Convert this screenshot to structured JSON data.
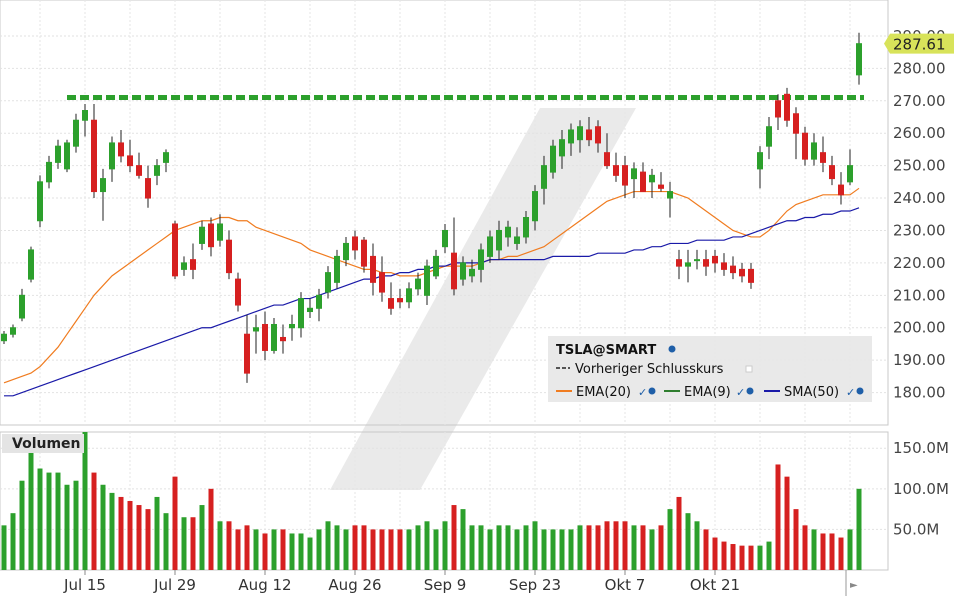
{
  "chart_data": {
    "type": "candlestick",
    "symbol": "TSLA@SMART",
    "last_price_label": "287.61",
    "price_axis": {
      "ticks": [
        "180.00",
        "190.00",
        "200.00",
        "210.00",
        "220.00",
        "230.00",
        "240.00",
        "250.00",
        "260.00",
        "270.00",
        "280.00",
        "290.00"
      ],
      "range": [
        170,
        298
      ]
    },
    "volume_axis": {
      "title": "Volumen",
      "ticks": [
        "50.0M",
        "100.0M",
        "150.0M"
      ],
      "range": [
        0,
        170
      ]
    },
    "x_ticks": [
      "Jul 15",
      "Jul 29",
      "Aug 12",
      "Aug 26",
      "Sep 9",
      "Sep 23",
      "Okt 7",
      "Okt 21"
    ],
    "x_tick_bars": [
      9,
      19,
      29,
      39,
      49,
      59,
      69,
      79
    ],
    "previous_close": 271.0,
    "legend": {
      "title": "TSLA@SMART",
      "items": [
        {
          "label": "Vorheriger Schlusskurs",
          "color": "#555555",
          "style": "dashed"
        },
        {
          "label": "EMA(20)",
          "color": "#f07c20"
        },
        {
          "label": "EMA(9)",
          "color": "#2e7d2e"
        },
        {
          "label": "SMA(50)",
          "color": "#1a1aa8"
        }
      ]
    },
    "colors": {
      "up": "#2ca02c",
      "down": "#d62020",
      "prev_close": "#2ca02c",
      "last_price_bg": "#d8e35a"
    },
    "ohlc": [
      [
        196,
        199,
        195,
        198
      ],
      [
        198,
        201,
        197,
        200
      ],
      [
        203,
        212,
        202,
        210
      ],
      [
        215,
        225,
        214,
        224
      ],
      [
        233,
        247,
        231,
        245
      ],
      [
        245,
        253,
        243,
        251
      ],
      [
        251,
        258,
        249,
        256
      ],
      [
        249,
        258,
        248,
        257
      ],
      [
        256,
        266,
        254,
        264
      ],
      [
        264,
        269,
        259,
        267
      ],
      [
        264,
        269,
        240,
        242
      ],
      [
        242,
        249,
        233,
        246
      ],
      [
        249,
        259,
        245,
        257
      ],
      [
        257,
        261,
        251,
        253
      ],
      [
        253,
        258,
        248,
        250
      ],
      [
        250,
        254,
        246,
        247
      ],
      [
        246,
        250,
        237,
        240
      ],
      [
        247,
        252,
        244,
        250
      ],
      [
        251,
        255,
        248,
        254
      ],
      [
        232,
        233,
        215,
        216
      ],
      [
        218,
        222,
        216,
        220
      ],
      [
        221,
        226,
        215,
        218
      ],
      [
        226,
        233,
        224,
        231
      ],
      [
        232,
        234,
        222,
        225
      ],
      [
        227,
        235,
        225,
        232
      ],
      [
        227,
        230,
        215,
        217
      ],
      [
        215,
        217,
        205,
        207
      ],
      [
        198,
        204,
        183,
        186
      ],
      [
        199,
        204,
        192,
        200
      ],
      [
        201,
        205,
        190,
        193
      ],
      [
        193,
        203,
        192,
        201
      ],
      [
        197,
        201,
        192,
        196
      ],
      [
        200,
        204,
        196,
        201
      ],
      [
        200,
        211,
        197,
        209
      ],
      [
        205,
        209,
        203,
        206
      ],
      [
        206,
        212,
        202,
        210
      ],
      [
        211,
        219,
        209,
        217
      ],
      [
        214,
        224,
        212,
        222
      ],
      [
        221,
        228,
        219,
        226
      ],
      [
        228,
        230,
        221,
        224
      ],
      [
        227,
        228,
        217,
        219
      ],
      [
        222,
        226,
        210,
        214
      ],
      [
        217,
        222,
        208,
        211
      ],
      [
        209,
        214,
        204,
        206
      ],
      [
        209,
        212,
        206,
        208
      ],
      [
        208,
        214,
        206,
        212
      ],
      [
        212,
        217,
        210,
        215
      ],
      [
        210,
        221,
        207,
        219
      ],
      [
        216,
        224,
        215,
        222
      ],
      [
        225,
        232,
        223,
        230
      ],
      [
        223,
        234,
        210,
        212
      ],
      [
        215,
        222,
        213,
        220
      ],
      [
        216,
        221,
        214,
        218
      ],
      [
        218,
        226,
        214,
        224
      ],
      [
        222,
        230,
        220,
        228
      ],
      [
        224,
        233,
        221,
        230
      ],
      [
        228,
        233,
        225,
        231
      ],
      [
        226,
        231,
        224,
        228
      ],
      [
        228,
        236,
        226,
        234
      ],
      [
        233,
        244,
        230,
        242
      ],
      [
        243,
        253,
        238,
        250
      ],
      [
        248,
        258,
        246,
        256
      ],
      [
        253,
        261,
        249,
        258
      ],
      [
        257,
        263,
        253,
        261
      ],
      [
        258,
        264,
        254,
        262
      ],
      [
        261,
        265,
        256,
        258
      ],
      [
        262,
        264,
        254,
        257
      ],
      [
        254,
        260,
        249,
        250
      ],
      [
        250,
        254,
        245,
        247
      ],
      [
        250,
        253,
        240,
        244
      ],
      [
        246,
        251,
        240,
        249
      ],
      [
        248,
        251,
        242,
        242
      ],
      [
        245,
        249,
        240,
        247
      ],
      [
        244,
        248,
        242,
        243
      ],
      [
        240,
        245,
        234,
        242
      ],
      [
        221,
        224,
        215,
        219
      ],
      [
        219,
        224,
        214,
        220
      ],
      [
        221,
        224,
        218,
        221
      ],
      [
        221,
        224,
        216,
        219
      ],
      [
        222,
        224,
        217,
        220
      ],
      [
        220,
        223,
        216,
        218
      ],
      [
        219,
        222,
        215,
        217
      ],
      [
        218,
        220,
        214,
        216
      ],
      [
        218,
        220,
        212,
        214
      ],
      [
        249,
        256,
        243,
        254
      ],
      [
        256,
        265,
        252,
        262
      ],
      [
        270,
        272,
        261,
        265
      ],
      [
        272,
        274,
        262,
        264
      ],
      [
        266,
        268,
        252,
        260
      ],
      [
        260,
        262,
        250,
        252
      ],
      [
        252,
        260,
        250,
        257
      ],
      [
        254,
        259,
        248,
        251
      ],
      [
        250,
        253,
        244,
        246
      ],
      [
        244,
        248,
        238,
        241
      ],
      [
        245,
        255,
        244,
        250
      ],
      [
        278,
        291,
        275,
        287.61
      ]
    ],
    "ema20": [
      183,
      184,
      185,
      186,
      188,
      191,
      194,
      198,
      202,
      206,
      210,
      213,
      216,
      218,
      220,
      222,
      224,
      226,
      228,
      230,
      231,
      232,
      233,
      233,
      234,
      234,
      233,
      233,
      231,
      230,
      229,
      228,
      227,
      226,
      224,
      223,
      222,
      221,
      220,
      219,
      218,
      218,
      217,
      217,
      216,
      216,
      216,
      217,
      218,
      219,
      219,
      219,
      219,
      220,
      221,
      221,
      222,
      222,
      223,
      224,
      225,
      227,
      229,
      231,
      233,
      235,
      237,
      239,
      240,
      241,
      242,
      242,
      242,
      242,
      242,
      241,
      240,
      238,
      236,
      234,
      232,
      230,
      229,
      228,
      228,
      230,
      233,
      236,
      238,
      239,
      240,
      241,
      241,
      241,
      241,
      243
    ],
    "sma50": [
      179,
      179,
      180,
      181,
      182,
      183,
      184,
      185,
      186,
      187,
      188,
      189,
      190,
      191,
      192,
      193,
      194,
      195,
      196,
      197,
      198,
      199,
      200,
      200,
      201,
      202,
      203,
      204,
      205,
      206,
      207,
      207,
      208,
      209,
      209,
      210,
      211,
      212,
      213,
      214,
      215,
      215,
      216,
      216,
      217,
      217,
      218,
      218,
      219,
      219,
      220,
      220,
      220,
      220,
      221,
      221,
      221,
      221,
      221,
      221,
      221,
      222,
      222,
      222,
      222,
      222,
      223,
      223,
      223,
      223,
      224,
      224,
      225,
      225,
      226,
      226,
      226,
      227,
      227,
      227,
      227,
      228,
      228,
      229,
      230,
      231,
      232,
      233,
      233,
      234,
      234,
      235,
      235,
      236,
      236,
      237
    ],
    "volume": [
      55,
      70,
      110,
      148,
      125,
      120,
      120,
      105,
      110,
      170,
      120,
      105,
      95,
      90,
      85,
      80,
      75,
      90,
      70,
      115,
      65,
      65,
      80,
      100,
      60,
      60,
      50,
      55,
      50,
      45,
      50,
      50,
      45,
      45,
      40,
      50,
      60,
      55,
      50,
      55,
      55,
      50,
      50,
      50,
      50,
      50,
      55,
      60,
      50,
      60,
      80,
      75,
      55,
      55,
      50,
      55,
      55,
      50,
      55,
      60,
      50,
      50,
      50,
      50,
      55,
      55,
      55,
      60,
      60,
      60,
      55,
      55,
      50,
      55,
      75,
      90,
      70,
      60,
      50,
      40,
      35,
      32,
      30,
      30,
      30,
      35,
      130,
      115,
      75,
      55,
      50,
      45,
      45,
      40,
      50,
      100
    ]
  }
}
